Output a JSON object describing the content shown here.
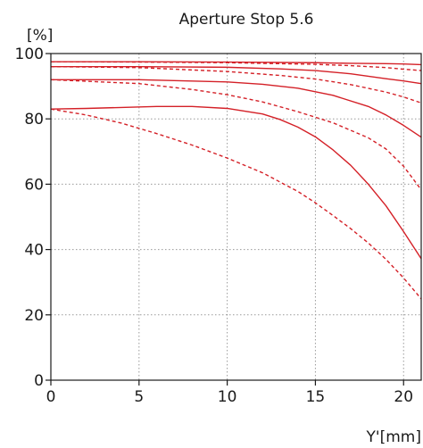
{
  "chart_data": {
    "type": "line",
    "title": "Aperture Stop 5.6",
    "xlabel": "Y'[mm]",
    "ylabel": "[%]",
    "xlim": [
      0,
      21
    ],
    "ylim": [
      0,
      100
    ],
    "xticks": [
      0,
      5,
      10,
      15,
      20
    ],
    "yticks": [
      0,
      20,
      40,
      60,
      80,
      100
    ],
    "grid": true,
    "line_color": "#d42027",
    "series": [
      {
        "style": "solid",
        "x": [
          0,
          5,
          10,
          15,
          17,
          19,
          20,
          21
        ],
        "y": [
          97.5,
          97.5,
          97.4,
          97.2,
          97.0,
          96.9,
          96.8,
          96.6
        ]
      },
      {
        "style": "dashed",
        "x": [
          0,
          5,
          10,
          15,
          17,
          19,
          20,
          21
        ],
        "y": [
          97.5,
          97.4,
          97.2,
          96.7,
          96.3,
          95.7,
          95.2,
          94.8
        ]
      },
      {
        "style": "solid",
        "x": [
          0,
          5,
          10,
          13,
          15,
          17,
          19,
          20,
          21
        ],
        "y": [
          96,
          96,
          95.8,
          95.3,
          94.8,
          93.8,
          92.3,
          91.6,
          90.8
        ]
      },
      {
        "style": "dashed",
        "x": [
          0,
          5,
          10,
          13,
          15,
          17,
          19,
          20,
          21
        ],
        "y": [
          96,
          95.7,
          94.5,
          93.3,
          92.2,
          90.5,
          88.2,
          86.7,
          84.9
        ]
      },
      {
        "style": "solid",
        "x": [
          0,
          5,
          10,
          12,
          14,
          16,
          18,
          19,
          20,
          21
        ],
        "y": [
          92,
          92,
          91.3,
          90.6,
          89.4,
          87.2,
          83.8,
          81.2,
          78.0,
          74.4
        ]
      },
      {
        "style": "dashed",
        "x": [
          0,
          5,
          8,
          10,
          12,
          14,
          16,
          18,
          19,
          20,
          21
        ],
        "y": [
          92,
          90.8,
          89.0,
          87.4,
          85.2,
          82.2,
          78.8,
          74.2,
          70.8,
          65.5,
          58.3
        ]
      },
      {
        "style": "solid",
        "x": [
          0,
          2,
          4,
          6,
          8,
          10,
          12,
          13,
          14,
          15,
          16,
          17,
          18,
          19,
          20,
          21
        ],
        "y": [
          83,
          83.2,
          83.5,
          83.8,
          83.8,
          83.2,
          81.5,
          79.8,
          77.5,
          74.5,
          70.5,
          65.8,
          60.0,
          53.4,
          45.5,
          37.2
        ]
      },
      {
        "style": "dashed",
        "x": [
          0,
          2,
          4,
          6,
          8,
          10,
          12,
          14,
          15,
          16,
          17,
          18,
          19,
          20,
          21
        ],
        "y": [
          83,
          81.2,
          78.7,
          75.5,
          72.0,
          68.0,
          63.5,
          57.8,
          54.3,
          50.4,
          46.4,
          42.0,
          37.0,
          31.3,
          24.9
        ]
      }
    ]
  }
}
